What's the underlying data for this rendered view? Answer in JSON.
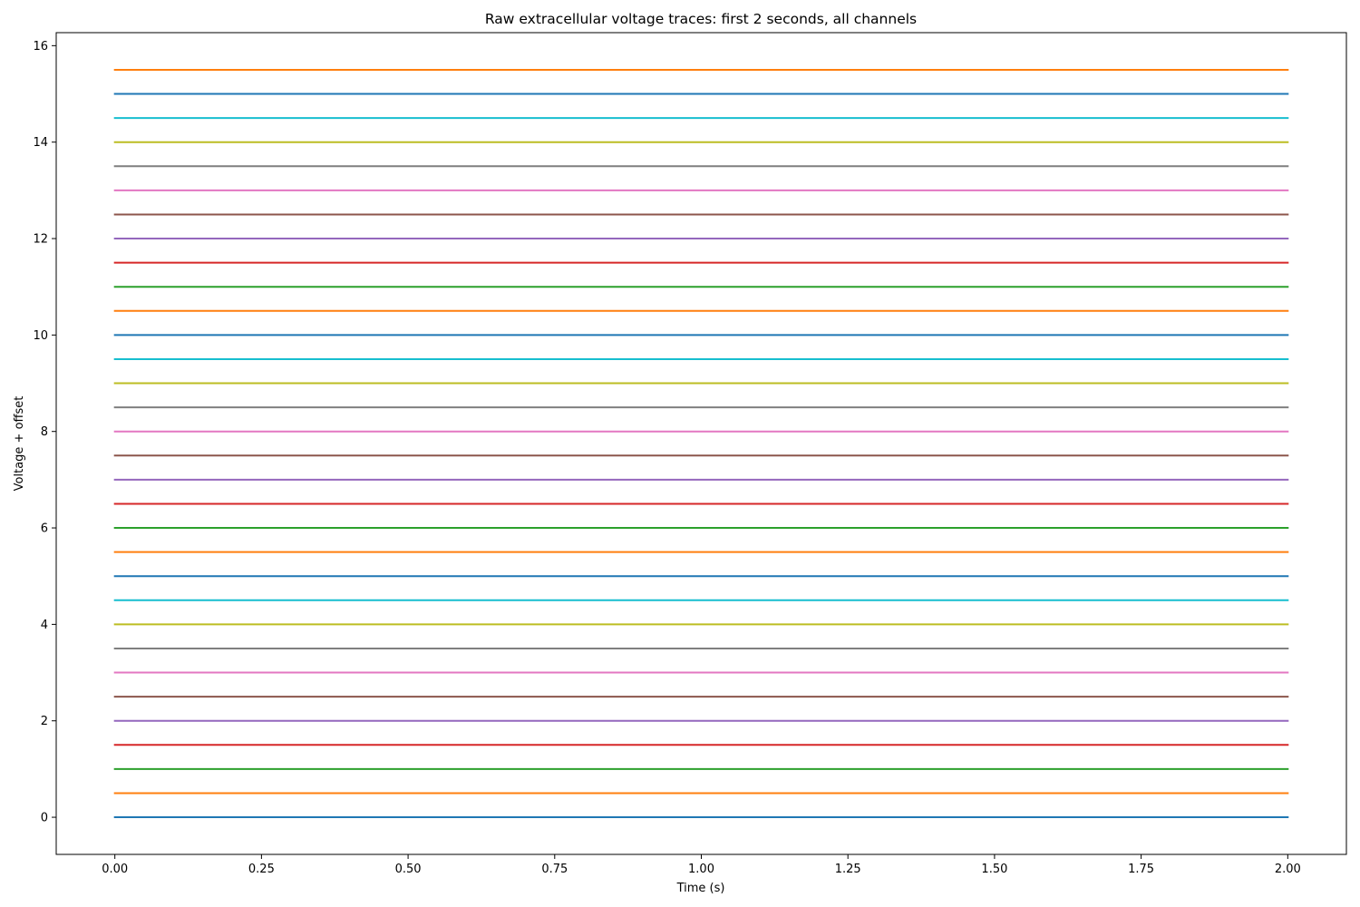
{
  "chart_data": {
    "type": "line",
    "title": "Raw extracellular voltage traces: first 2 seconds, all channels",
    "xlabel": "Time (s)",
    "ylabel": "Voltage + offset",
    "xlim": [
      -0.1,
      2.1
    ],
    "ylim": [
      -0.77,
      16.27
    ],
    "x_ticks": [
      0.0,
      0.25,
      0.5,
      0.75,
      1.0,
      1.25,
      1.5,
      1.75,
      2.0
    ],
    "x_tick_labels": [
      "0.00",
      "0.25",
      "0.50",
      "0.75",
      "1.00",
      "1.25",
      "1.50",
      "1.75",
      "2.00"
    ],
    "y_ticks": [
      0,
      2,
      4,
      6,
      8,
      10,
      12,
      14,
      16
    ],
    "y_tick_labels": [
      "0",
      "2",
      "4",
      "6",
      "8",
      "10",
      "12",
      "14",
      "16"
    ],
    "grid": false,
    "legend": "none",
    "x": [
      0.0,
      2.0
    ],
    "series": [
      {
        "values": [
          0.0,
          0.0
        ],
        "color": "#1f77b4"
      },
      {
        "values": [
          0.5,
          0.5
        ],
        "color": "#ff7f0e"
      },
      {
        "values": [
          1.0,
          1.0
        ],
        "color": "#2ca02c"
      },
      {
        "values": [
          1.5,
          1.5
        ],
        "color": "#d62728"
      },
      {
        "values": [
          2.0,
          2.0
        ],
        "color": "#9467bd"
      },
      {
        "values": [
          2.5,
          2.5
        ],
        "color": "#8c564b"
      },
      {
        "values": [
          3.0,
          3.0
        ],
        "color": "#e377c2"
      },
      {
        "values": [
          3.5,
          3.5
        ],
        "color": "#7f7f7f"
      },
      {
        "values": [
          4.0,
          4.0
        ],
        "color": "#bcbd22"
      },
      {
        "values": [
          4.5,
          4.5
        ],
        "color": "#17becf"
      },
      {
        "values": [
          5.0,
          5.0
        ],
        "color": "#1f77b4"
      },
      {
        "values": [
          5.5,
          5.5
        ],
        "color": "#ff7f0e"
      },
      {
        "values": [
          6.0,
          6.0
        ],
        "color": "#2ca02c"
      },
      {
        "values": [
          6.5,
          6.5
        ],
        "color": "#d62728"
      },
      {
        "values": [
          7.0,
          7.0
        ],
        "color": "#9467bd"
      },
      {
        "values": [
          7.5,
          7.5
        ],
        "color": "#8c564b"
      },
      {
        "values": [
          8.0,
          8.0
        ],
        "color": "#e377c2"
      },
      {
        "values": [
          8.5,
          8.5
        ],
        "color": "#7f7f7f"
      },
      {
        "values": [
          9.0,
          9.0
        ],
        "color": "#bcbd22"
      },
      {
        "values": [
          9.5,
          9.5
        ],
        "color": "#17becf"
      },
      {
        "values": [
          10.0,
          10.0
        ],
        "color": "#1f77b4"
      },
      {
        "values": [
          10.5,
          10.5
        ],
        "color": "#ff7f0e"
      },
      {
        "values": [
          11.0,
          11.0
        ],
        "color": "#2ca02c"
      },
      {
        "values": [
          11.5,
          11.5
        ],
        "color": "#d62728"
      },
      {
        "values": [
          12.0,
          12.0
        ],
        "color": "#9467bd"
      },
      {
        "values": [
          12.5,
          12.5
        ],
        "color": "#8c564b"
      },
      {
        "values": [
          13.0,
          13.0
        ],
        "color": "#e377c2"
      },
      {
        "values": [
          13.5,
          13.5
        ],
        "color": "#7f7f7f"
      },
      {
        "values": [
          14.0,
          14.0
        ],
        "color": "#bcbd22"
      },
      {
        "values": [
          14.5,
          14.5
        ],
        "color": "#17becf"
      },
      {
        "values": [
          15.0,
          15.0
        ],
        "color": "#1f77b4"
      },
      {
        "values": [
          15.5,
          15.5
        ],
        "color": "#ff7f0e"
      }
    ]
  }
}
